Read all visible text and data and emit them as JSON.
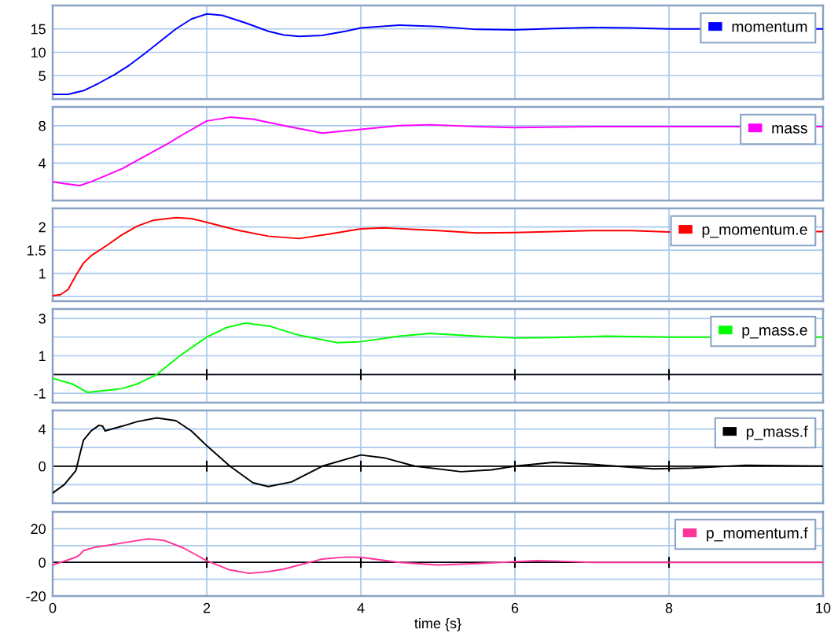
{
  "chart_data": [
    {
      "type": "line",
      "xlim": [
        0,
        10
      ],
      "xticks": [
        0,
        2,
        4,
        6,
        8,
        10
      ],
      "ylim": [
        0,
        20
      ],
      "yticks": [
        5,
        10,
        15
      ],
      "grid": true,
      "legend": "top right",
      "tick_labels": "y",
      "series": [
        {
          "name": "momentum",
          "color": "#0000ff",
          "x": [
            0,
            0.2,
            0.4,
            0.6,
            0.8,
            1.0,
            1.2,
            1.4,
            1.6,
            1.8,
            2.0,
            2.2,
            2.5,
            2.8,
            3.0,
            3.2,
            3.5,
            3.8,
            4.0,
            4.5,
            5.0,
            5.5,
            6.0,
            6.5,
            7.0,
            7.5,
            8.0,
            10.0
          ],
          "values": [
            1,
            1,
            1.8,
            3.4,
            5.2,
            7.3,
            9.8,
            12.4,
            15,
            17.1,
            18.2,
            17.9,
            16.3,
            14.5,
            13.7,
            13.4,
            13.6,
            14.5,
            15.2,
            15.8,
            15.5,
            14.9,
            14.8,
            15.1,
            15.3,
            15.2,
            15,
            15
          ]
        }
      ]
    },
    {
      "type": "line",
      "xlim": [
        0,
        10
      ],
      "xticks": [
        0,
        2,
        4,
        6,
        8,
        10
      ],
      "ylim": [
        0,
        10
      ],
      "yticks": [
        {
          "value": 2,
          "label": null
        },
        4,
        {
          "value": 6,
          "label": null
        },
        8
      ],
      "grid": true,
      "legend": "top right",
      "tick_labels": "y",
      "series": [
        {
          "name": "mass",
          "color": "#ff00ff",
          "x": [
            0,
            0.15,
            0.35,
            0.5,
            0.7,
            0.9,
            1.1,
            1.3,
            1.5,
            1.7,
            2.0,
            2.3,
            2.6,
            3.0,
            3.5,
            4.0,
            4.5,
            4.9,
            5.5,
            6.0,
            7.0,
            8.0,
            10.0
          ],
          "values": [
            2,
            1.8,
            1.6,
            2,
            2.7,
            3.4,
            4.3,
            5.2,
            6.1,
            7.1,
            8.5,
            8.9,
            8.7,
            8,
            7.2,
            7.6,
            8,
            8.1,
            7.9,
            7.8,
            7.9,
            7.9,
            7.9
          ]
        }
      ]
    },
    {
      "type": "line",
      "xlim": [
        0,
        10
      ],
      "xticks": [
        0,
        2,
        4,
        6,
        8,
        10
      ],
      "ylim": [
        0.4,
        2.4
      ],
      "yticks": [
        {
          "value": 0.5,
          "label": null
        },
        1,
        1.5,
        2
      ],
      "grid": true,
      "legend": "top right",
      "tick_labels": "y",
      "series": [
        {
          "name": "p_momentum.e",
          "color": "#ff0000",
          "x": [
            0,
            0.1,
            0.2,
            0.3,
            0.4,
            0.5,
            0.7,
            0.9,
            1.1,
            1.3,
            1.6,
            1.8,
            2.0,
            2.4,
            2.8,
            3.2,
            3.6,
            4.0,
            4.3,
            5.0,
            5.5,
            6.0,
            7.0,
            7.5,
            8.0,
            10.0
          ],
          "values": [
            0.52,
            0.54,
            0.65,
            0.95,
            1.22,
            1.38,
            1.6,
            1.83,
            2.02,
            2.14,
            2.2,
            2.18,
            2.1,
            1.93,
            1.8,
            1.75,
            1.85,
            1.96,
            1.98,
            1.92,
            1.87,
            1.88,
            1.92,
            1.92,
            1.89,
            1.9
          ]
        }
      ]
    },
    {
      "type": "line",
      "xlim": [
        0,
        10
      ],
      "xticks": [
        0,
        2,
        4,
        6,
        8,
        10
      ],
      "ylim": [
        -1.5,
        3.5
      ],
      "yticks": [
        -1,
        {
          "value": 0,
          "label": null
        },
        1,
        {
          "value": 2,
          "label": null
        },
        3
      ],
      "grid": true,
      "legend": "top right",
      "tick_labels": "y",
      "ref_lines": [
        {
          "axis": "y",
          "value": 0,
          "color": "#000000"
        }
      ],
      "series": [
        {
          "name": "p_mass.e",
          "color": "#00ff00",
          "x": [
            0,
            0.25,
            0.45,
            0.7,
            0.9,
            1.1,
            1.35,
            1.65,
            2.0,
            2.25,
            2.5,
            2.8,
            3.2,
            3.7,
            4.0,
            4.5,
            4.9,
            5.5,
            6.0,
            6.5,
            7.2,
            8.0,
            10.0
          ],
          "values": [
            -0.2,
            -0.5,
            -0.95,
            -0.85,
            -0.75,
            -0.5,
            0,
            1,
            2,
            2.5,
            2.75,
            2.6,
            2.1,
            1.7,
            1.75,
            2.05,
            2.2,
            2.05,
            1.95,
            1.98,
            2.05,
            2.0,
            2.0
          ]
        }
      ]
    },
    {
      "type": "line",
      "xlim": [
        0,
        10
      ],
      "xticks": [
        0,
        2,
        4,
        6,
        8,
        10
      ],
      "ylim": [
        -4,
        6
      ],
      "yticks": [
        {
          "value": -2,
          "label": null
        },
        0,
        {
          "value": 2,
          "label": null
        },
        4
      ],
      "grid": true,
      "legend": "top right",
      "tick_labels": "y",
      "ref_lines": [
        {
          "axis": "y",
          "value": 0,
          "color": "#000000"
        }
      ],
      "series": [
        {
          "name": "p_mass.f",
          "color": "#000000",
          "x": [
            0,
            0.15,
            0.3,
            0.36,
            0.4,
            0.5,
            0.6,
            0.65,
            0.68,
            0.9,
            1.1,
            1.35,
            1.6,
            1.8,
            2.0,
            2.3,
            2.6,
            2.8,
            3.1,
            3.5,
            4.0,
            4.3,
            4.7,
            5.3,
            5.7,
            6.0,
            6.5,
            7.0,
            7.3,
            7.8,
            8.3,
            9.0,
            10.0
          ],
          "values": [
            -2.9,
            -2,
            -0.5,
            1.5,
            2.8,
            3.8,
            4.4,
            4.3,
            3.8,
            4.3,
            4.8,
            5.2,
            4.9,
            3.8,
            2.2,
            0,
            -1.8,
            -2.2,
            -1.7,
            0,
            1.2,
            0.9,
            0,
            -0.6,
            -0.4,
            0,
            0.4,
            0.2,
            0,
            -0.3,
            -0.2,
            0.1,
            0
          ]
        }
      ]
    },
    {
      "type": "line",
      "xlim": [
        0,
        10
      ],
      "xticks": [
        0,
        2,
        4,
        6,
        8,
        10
      ],
      "ylim": [
        -20,
        30
      ],
      "yticks": [
        -20,
        {
          "value": -10,
          "label": null
        },
        0,
        {
          "value": 10,
          "label": null
        },
        20
      ],
      "grid": true,
      "legend": "top right",
      "xlabel": "time {s}",
      "ref_lines": [
        {
          "axis": "y",
          "value": 0,
          "color": "#000000"
        }
      ],
      "series": [
        {
          "name": "p_momentum.f",
          "color": "#ff3399",
          "x": [
            0,
            0.3,
            0.35,
            0.4,
            0.55,
            0.7,
            0.9,
            1.1,
            1.25,
            1.45,
            1.7,
            2.0,
            2.3,
            2.55,
            2.8,
            3.0,
            3.5,
            3.8,
            4.0,
            4.5,
            5.0,
            5.5,
            5.8,
            6.3,
            6.7,
            7.0,
            8.0,
            10.0
          ],
          "values": [
            -1.5,
            3,
            4.5,
            7,
            9,
            10,
            11.5,
            13,
            14,
            13,
            8.5,
            1,
            -4.5,
            -6.5,
            -5.5,
            -4,
            2,
            3.2,
            3,
            0,
            -1.5,
            -0.7,
            0,
            1,
            0.5,
            0,
            0,
            0
          ]
        }
      ]
    }
  ]
}
